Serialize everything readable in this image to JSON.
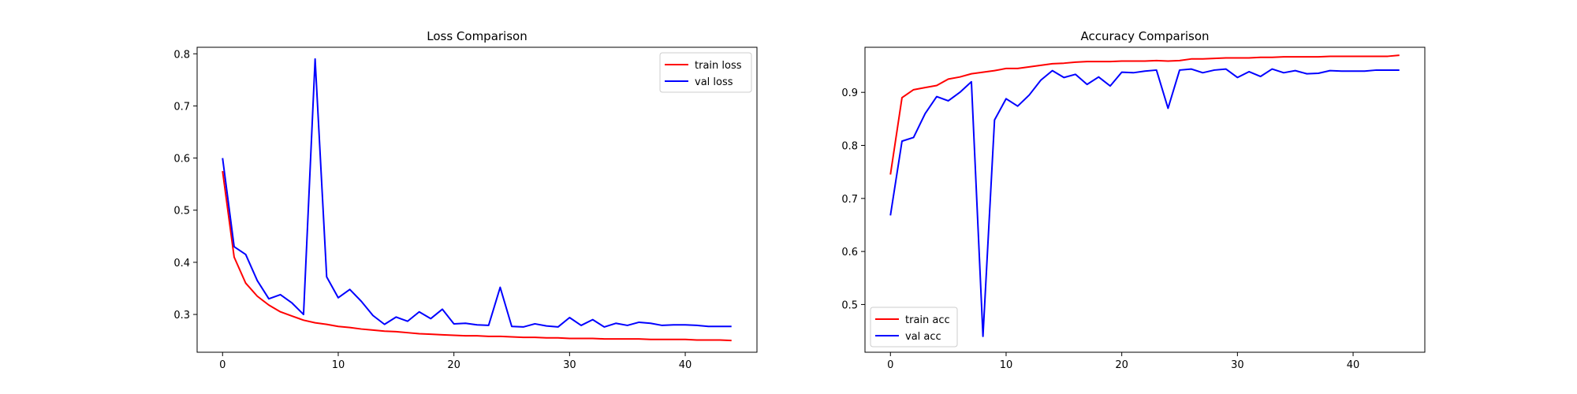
{
  "chart_data": [
    {
      "type": "line",
      "title": "Loss Comparison",
      "xlabel": "",
      "ylabel": "",
      "xlim": [
        -2.2,
        46.2
      ],
      "ylim": [
        0.2275,
        0.8125
      ],
      "xticks": [
        0,
        10,
        20,
        30,
        40
      ],
      "yticks": [
        0.3,
        0.4,
        0.5,
        0.6,
        0.7,
        0.8
      ],
      "ytick_labels": [
        "0.3",
        "0.4",
        "0.5",
        "0.6",
        "0.7",
        "0.8"
      ],
      "grid": false,
      "legend": "top-right",
      "x": [
        0,
        1,
        2,
        3,
        4,
        5,
        6,
        7,
        8,
        9,
        10,
        11,
        12,
        13,
        14,
        15,
        16,
        17,
        18,
        19,
        20,
        21,
        22,
        23,
        24,
        25,
        26,
        27,
        28,
        29,
        30,
        31,
        32,
        33,
        34,
        35,
        36,
        37,
        38,
        39,
        40,
        41,
        42,
        43,
        44
      ],
      "series": [
        {
          "name": "train loss",
          "color": "#ff0000",
          "values": [
            0.575,
            0.41,
            0.36,
            0.335,
            0.318,
            0.305,
            0.297,
            0.289,
            0.284,
            0.281,
            0.277,
            0.275,
            0.272,
            0.27,
            0.268,
            0.267,
            0.265,
            0.263,
            0.262,
            0.261,
            0.26,
            0.259,
            0.259,
            0.258,
            0.258,
            0.257,
            0.256,
            0.256,
            0.255,
            0.255,
            0.254,
            0.254,
            0.254,
            0.253,
            0.253,
            0.253,
            0.253,
            0.252,
            0.252,
            0.252,
            0.252,
            0.251,
            0.251,
            0.251,
            0.25
          ]
        },
        {
          "name": "val loss",
          "color": "#0000ff",
          "values": [
            0.6,
            0.43,
            0.415,
            0.365,
            0.33,
            0.338,
            0.322,
            0.3,
            0.79,
            0.372,
            0.332,
            0.348,
            0.325,
            0.298,
            0.281,
            0.295,
            0.287,
            0.305,
            0.292,
            0.31,
            0.282,
            0.283,
            0.28,
            0.279,
            0.352,
            0.277,
            0.276,
            0.282,
            0.278,
            0.276,
            0.294,
            0.279,
            0.29,
            0.276,
            0.283,
            0.279,
            0.285,
            0.283,
            0.279,
            0.28,
            0.28,
            0.279,
            0.277,
            0.277,
            0.277
          ]
        }
      ]
    },
    {
      "type": "line",
      "title": "Accuracy Comparison",
      "xlabel": "",
      "ylabel": "",
      "xlim": [
        -2.2,
        46.2
      ],
      "ylim": [
        0.41,
        0.985
      ],
      "xticks": [
        0,
        10,
        20,
        30,
        40
      ],
      "yticks": [
        0.5,
        0.6,
        0.7,
        0.8,
        0.9
      ],
      "ytick_labels": [
        "0.5",
        "0.6",
        "0.7",
        "0.8",
        "0.9"
      ],
      "grid": false,
      "legend": "bottom-left",
      "x": [
        0,
        1,
        2,
        3,
        4,
        5,
        6,
        7,
        8,
        9,
        10,
        11,
        12,
        13,
        14,
        15,
        16,
        17,
        18,
        19,
        20,
        21,
        22,
        23,
        24,
        25,
        26,
        27,
        28,
        29,
        30,
        31,
        32,
        33,
        34,
        35,
        36,
        37,
        38,
        39,
        40,
        41,
        42,
        43,
        44
      ],
      "series": [
        {
          "name": "train acc",
          "color": "#ff0000",
          "values": [
            0.745,
            0.89,
            0.905,
            0.909,
            0.913,
            0.925,
            0.929,
            0.935,
            0.938,
            0.941,
            0.945,
            0.945,
            0.948,
            0.951,
            0.954,
            0.955,
            0.957,
            0.958,
            0.958,
            0.958,
            0.959,
            0.959,
            0.959,
            0.96,
            0.959,
            0.96,
            0.963,
            0.963,
            0.964,
            0.965,
            0.965,
            0.965,
            0.966,
            0.966,
            0.967,
            0.967,
            0.967,
            0.967,
            0.968,
            0.968,
            0.968,
            0.968,
            0.968,
            0.968,
            0.97
          ]
        },
        {
          "name": "val acc",
          "color": "#0000ff",
          "values": [
            0.668,
            0.808,
            0.815,
            0.86,
            0.892,
            0.884,
            0.9,
            0.92,
            0.44,
            0.848,
            0.888,
            0.874,
            0.895,
            0.923,
            0.941,
            0.928,
            0.934,
            0.915,
            0.929,
            0.912,
            0.938,
            0.937,
            0.94,
            0.942,
            0.87,
            0.942,
            0.944,
            0.937,
            0.942,
            0.944,
            0.928,
            0.939,
            0.93,
            0.944,
            0.937,
            0.941,
            0.935,
            0.936,
            0.941,
            0.94,
            0.94,
            0.94,
            0.942,
            0.942,
            0.942
          ]
        }
      ]
    }
  ]
}
